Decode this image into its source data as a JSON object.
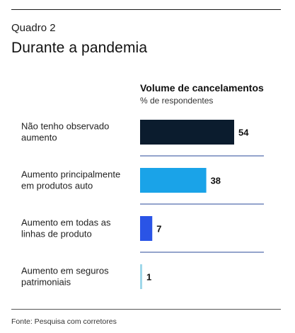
{
  "header": {
    "label": "Quadro 2",
    "title": "Durante a pandemia"
  },
  "footer": {
    "source": "Fonte: Pesquisa com corretores"
  },
  "chart_data": {
    "type": "bar",
    "orientation": "horizontal",
    "title": "Volume de cancelamentos",
    "subtitle": "% de respondentes",
    "categories": [
      [
        "Não tenho observado",
        "aumento"
      ],
      [
        "Aumento principalmente",
        "em produtos auto"
      ],
      [
        "Aumento em todas as",
        "linhas de produto"
      ],
      [
        "Aumento em seguros",
        "patrimoniais"
      ]
    ],
    "values": [
      54,
      38,
      7,
      1
    ],
    "value_labels": [
      "54",
      "38",
      "7",
      "1"
    ],
    "colors": [
      "#0b1c2e",
      "#1aa3e8",
      "#2a54e6",
      "#9fd8ea"
    ],
    "xlim": [
      0,
      54
    ],
    "grid": false,
    "separator_color": "#2a4a9a"
  }
}
